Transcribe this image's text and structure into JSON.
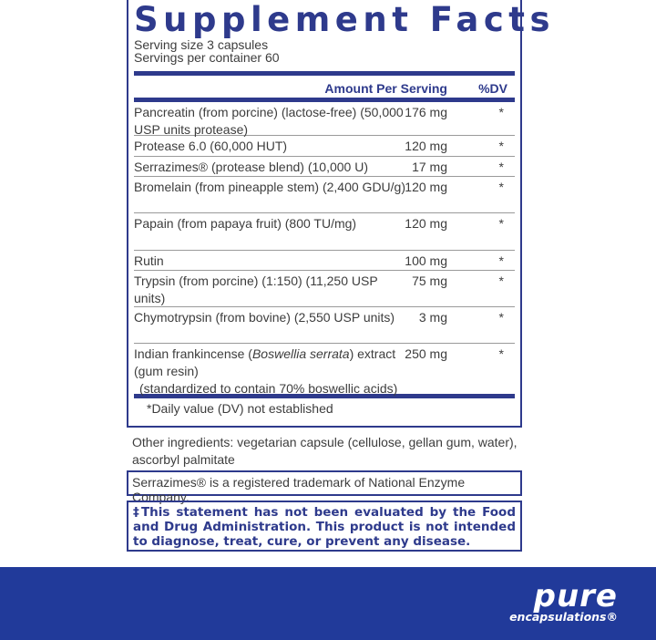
{
  "title": "Supplement Facts",
  "serving_size": "Serving size  3 capsules",
  "servings_per_container": "Servings per container  60",
  "header": {
    "amount": "Amount Per Serving",
    "dv": "%DV"
  },
  "rows": [
    {
      "name": "Pancreatin (from porcine) (lactose-free) (50,000 USP units protease)",
      "amount": "176 mg",
      "dv": "*"
    },
    {
      "name": "Protease 6.0 (60,000 HUT)",
      "amount": "120 mg",
      "dv": "*"
    },
    {
      "name": "Serrazimes® (protease blend) (10,000 U)",
      "amount": "17 mg",
      "dv": "*"
    },
    {
      "name": "Bromelain (from pineapple stem) (2,400 GDU/g)",
      "amount": "120 mg",
      "dv": "*"
    },
    {
      "name": "Papain (from papaya fruit) (800 TU/mg)",
      "amount": "120 mg",
      "dv": "*"
    },
    {
      "name": "Rutin",
      "amount": "100 mg",
      "dv": "*"
    },
    {
      "name": "Trypsin (from porcine) (1:150) (11,250 USP units)",
      "amount": "75 mg",
      "dv": "*"
    },
    {
      "name": "Chymotrypsin (from bovine) (2,550 USP units)",
      "amount": "3 mg",
      "dv": "*"
    },
    {
      "name_parts": [
        "Indian frankincense (",
        "Boswellia serrata",
        ") extract (gum resin)",
        "(standardized to contain 70% boswellic acids)"
      ],
      "amount": "250 mg",
      "dv": "*"
    }
  ],
  "footnote": "*Daily value (DV) not established",
  "other_ingredients": "Other ingredients: vegetarian capsule (cellulose, gellan gum, water), ascorbyl palmitate",
  "trademark": "Serrazimes® is a registered trademark of National Enzyme Company.",
  "disclaimer": "‡This statement has not been evaluated by the Food and Drug Administration. This product is not intended to diagnose, treat, cure, or prevent any disease.",
  "brand": {
    "name": "pure",
    "sub": "encapsulations®"
  },
  "colors": {
    "accent": "#2e3a8c",
    "banner": "#213a9a",
    "text": "#3d3d3d"
  }
}
